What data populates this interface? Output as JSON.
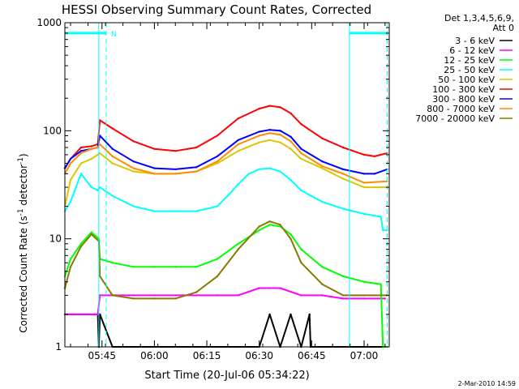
{
  "chart_data": {
    "type": "line",
    "title": "HESSI Observing Summary Count Rates, Corrected",
    "xlabel": "Start Time (20-Jul-06 05:34:22)",
    "ylabel_main": "Corrected Count Rate (s",
    "ylabel_sup1": "-1",
    "ylabel_mid": " detector",
    "ylabel_sup2": "-1",
    "ylabel_end": ")",
    "y_scale": "log",
    "ylim": [
      1,
      1000
    ],
    "xlim": [
      5.573,
      7.12
    ],
    "y_ticks": [
      {
        "value": 1,
        "label": "1"
      },
      {
        "value": 10,
        "label": "10"
      },
      {
        "value": 100,
        "label": "100"
      },
      {
        "value": 1000,
        "label": "1000"
      }
    ],
    "x_ticks": [
      {
        "value": 5.75,
        "label": "05:45"
      },
      {
        "value": 6.0,
        "label": "06:00"
      },
      {
        "value": 6.25,
        "label": "06:15"
      },
      {
        "value": 6.5,
        "label": "06:30"
      },
      {
        "value": 6.75,
        "label": "06:45"
      },
      {
        "value": 7.0,
        "label": "07:00"
      }
    ],
    "legend_position": "top-right, outside plot",
    "legend_header": [
      "Det 1,3,4,5,6,9,",
      "Att 0"
    ],
    "legend": [
      {
        "label": "3 - 6 keV",
        "color": "#000000"
      },
      {
        "label": "6 - 12 keV",
        "color": "#ff00ff"
      },
      {
        "label": "12 - 25 keV",
        "color": "#00ff00"
      },
      {
        "label": "25 - 50 keV",
        "color": "#00ffff"
      },
      {
        "label": "50 - 100 keV",
        "color": "#d7c800"
      },
      {
        "label": "100 - 300 keV",
        "color": "#ff0000"
      },
      {
        "label": "300 - 800 keV",
        "color": "#0000ff"
      },
      {
        "label": "800 - 7000 keV",
        "color": "#ff8c00"
      },
      {
        "label": "7000 - 20000 keV",
        "color": "#8b7800"
      }
    ],
    "night_marker": {
      "label": "N",
      "color": "#00ffff",
      "level": 800,
      "segments": [
        [
          5.573,
          5.77
        ],
        [
          6.93,
          7.11
        ]
      ]
    },
    "boundaries": {
      "solid": [
        5.573,
        5.735,
        6.93
      ],
      "dashed": [
        5.77,
        7.11
      ],
      "color": "#00ffff"
    },
    "series": [
      {
        "name": "3 - 6 keV",
        "color": "#000000",
        "x": [
          5.573,
          5.73,
          5.735,
          5.74,
          5.8,
          6.5,
          6.55,
          6.6,
          6.65,
          6.7,
          6.74,
          6.745,
          7.1
        ],
        "y": [
          2.0,
          2.0,
          1.0,
          2.0,
          1.0,
          1.0,
          2.0,
          1.0,
          2.0,
          1.0,
          2.0,
          1.0,
          1.0
        ]
      },
      {
        "name": "6 - 12 keV",
        "color": "#ff00ff",
        "x": [
          5.573,
          5.73,
          5.74,
          5.8,
          5.9,
          6.0,
          6.1,
          6.2,
          6.3,
          6.4,
          6.5,
          6.55,
          6.6,
          6.7,
          6.8,
          6.9,
          7.0,
          7.1
        ],
        "y": [
          2.0,
          2.0,
          3.0,
          3.0,
          3.0,
          3.0,
          3.0,
          3.0,
          3.0,
          3.0,
          3.5,
          3.5,
          3.5,
          3.0,
          3.0,
          2.8,
          2.8,
          2.8
        ]
      },
      {
        "name": "12 - 25 keV",
        "color": "#00ff00",
        "x": [
          5.573,
          5.6,
          5.65,
          5.7,
          5.735,
          5.74,
          5.8,
          5.9,
          6.0,
          6.1,
          6.2,
          6.3,
          6.4,
          6.5,
          6.55,
          6.6,
          6.65,
          6.7,
          6.8,
          6.9,
          7.0,
          7.08,
          7.09,
          7.11
        ],
        "y": [
          4.5,
          6.5,
          9.0,
          11.5,
          10.0,
          6.5,
          6.0,
          5.5,
          5.5,
          5.5,
          5.5,
          6.5,
          9.0,
          12.0,
          13.5,
          13.0,
          11.0,
          8.0,
          5.5,
          4.5,
          4.0,
          3.8,
          1.0,
          1.0
        ]
      },
      {
        "name": "25 - 50 keV",
        "color": "#00ffff",
        "x": [
          5.573,
          5.6,
          5.65,
          5.7,
          5.73,
          5.74,
          5.8,
          5.9,
          6.0,
          6.1,
          6.2,
          6.3,
          6.35,
          6.4,
          6.45,
          6.5,
          6.55,
          6.6,
          6.65,
          6.7,
          6.8,
          6.9,
          7.0,
          7.08,
          7.09,
          7.11
        ],
        "y": [
          18,
          22,
          40,
          30,
          28,
          30,
          25,
          20,
          18,
          18,
          18,
          20,
          25,
          32,
          40,
          44,
          45,
          42,
          35,
          28,
          22,
          19,
          17,
          16,
          12,
          12
        ]
      },
      {
        "name": "50 - 100 keV",
        "color": "#d7c800",
        "x": [
          5.573,
          5.6,
          5.65,
          5.7,
          5.73,
          5.74,
          5.8,
          5.9,
          6.0,
          6.1,
          6.2,
          6.3,
          6.4,
          6.5,
          6.55,
          6.6,
          6.65,
          6.7,
          6.8,
          6.9,
          7.0,
          7.11
        ],
        "y": [
          20,
          35,
          50,
          55,
          60,
          62,
          50,
          42,
          40,
          40,
          42,
          50,
          65,
          78,
          82,
          78,
          68,
          55,
          45,
          36,
          30,
          30
        ]
      },
      {
        "name": "100 - 300 keV",
        "color": "#ff0000",
        "x": [
          5.573,
          5.6,
          5.65,
          5.7,
          5.73,
          5.74,
          5.8,
          5.9,
          6.0,
          6.1,
          6.2,
          6.3,
          6.4,
          6.5,
          6.55,
          6.6,
          6.65,
          6.7,
          6.8,
          6.9,
          7.0,
          7.05,
          7.11
        ],
        "y": [
          45,
          55,
          70,
          72,
          75,
          125,
          105,
          80,
          68,
          65,
          70,
          90,
          130,
          160,
          170,
          165,
          145,
          115,
          85,
          70,
          60,
          58,
          62
        ]
      },
      {
        "name": "300 - 800 keV",
        "color": "#0000ff",
        "x": [
          5.573,
          5.6,
          5.65,
          5.7,
          5.73,
          5.74,
          5.8,
          5.9,
          6.0,
          6.1,
          6.2,
          6.3,
          6.4,
          6.5,
          6.55,
          6.6,
          6.65,
          6.7,
          6.8,
          6.9,
          7.0,
          7.05,
          7.11
        ],
        "y": [
          45,
          55,
          65,
          68,
          70,
          90,
          68,
          52,
          45,
          44,
          46,
          58,
          82,
          98,
          102,
          100,
          88,
          68,
          52,
          44,
          40,
          40,
          44
        ]
      },
      {
        "name": "800 - 7000 keV",
        "color": "#ff8c00",
        "x": [
          5.573,
          5.6,
          5.65,
          5.7,
          5.73,
          5.74,
          5.8,
          5.9,
          6.0,
          6.1,
          6.2,
          6.3,
          6.4,
          6.5,
          6.55,
          6.6,
          6.65,
          6.7,
          6.8,
          6.9,
          7.0,
          7.11
        ],
        "y": [
          40,
          50,
          62,
          68,
          70,
          75,
          58,
          45,
          40,
          40,
          42,
          52,
          75,
          90,
          95,
          92,
          80,
          62,
          47,
          40,
          33,
          34
        ]
      },
      {
        "name": "7000 - 20000 keV",
        "color": "#8b7800",
        "x": [
          5.573,
          5.6,
          5.65,
          5.7,
          5.735,
          5.74,
          5.8,
          5.9,
          6.0,
          6.1,
          6.2,
          6.3,
          6.4,
          6.5,
          6.55,
          6.6,
          6.65,
          6.7,
          6.8,
          6.9,
          7.0,
          7.11
        ],
        "y": [
          3.5,
          5.5,
          8.5,
          11.0,
          9.5,
          4.5,
          3.0,
          2.8,
          2.8,
          2.8,
          3.2,
          4.5,
          8.0,
          13.0,
          14.5,
          13.5,
          10.0,
          6.0,
          3.8,
          3.0,
          3.0,
          3.0
        ]
      }
    ]
  },
  "footer_timestamp": "2-Mar-2010 14:59"
}
